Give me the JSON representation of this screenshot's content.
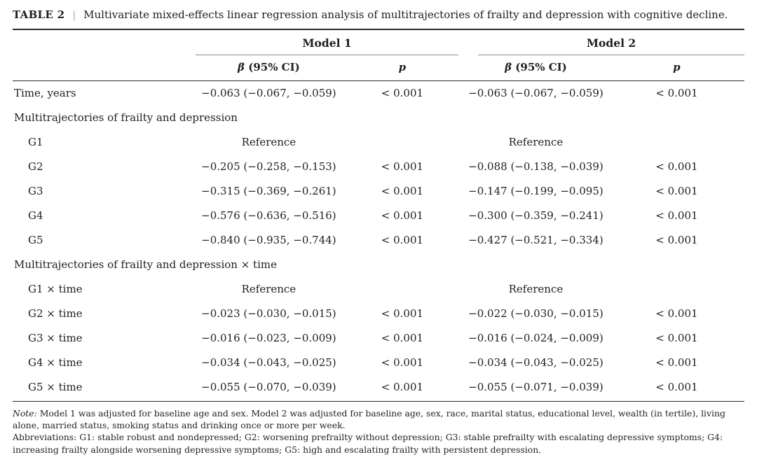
{
  "caption": {
    "label": "TABLE 2",
    "separator": "|",
    "text": "Multivariate mixed-effects linear regression analysis of multitrajectories of frailty and depression with cognitive decline."
  },
  "headers": {
    "model1": "Model 1",
    "model2": "Model 2",
    "beta_symbol": "β",
    "beta_rest": " (95% CI)",
    "p": "p"
  },
  "rows": [
    {
      "type": "data",
      "label": "Time, years",
      "m1_beta": "−0.063 (−0.067, −0.059)",
      "m1_p": "< 0.001",
      "m2_beta": "−0.063 (−0.067, −0.059)",
      "m2_p": "< 0.001"
    },
    {
      "type": "section",
      "label": "Multitrajectories of frailty and depression"
    },
    {
      "type": "reference",
      "label": "G1",
      "m1_beta": "Reference",
      "m1_p": "",
      "m2_beta": "Reference",
      "m2_p": ""
    },
    {
      "type": "data",
      "label": "G2",
      "m1_beta": "−0.205 (−0.258, −0.153)",
      "m1_p": "< 0.001",
      "m2_beta": "−0.088 (−0.138, −0.039)",
      "m2_p": "< 0.001"
    },
    {
      "type": "data",
      "label": "G3",
      "m1_beta": "−0.315 (−0.369, −0.261)",
      "m1_p": "< 0.001",
      "m2_beta": "−0.147 (−0.199, −0.095)",
      "m2_p": "< 0.001"
    },
    {
      "type": "data",
      "label": "G4",
      "m1_beta": "−0.576 (−0.636, −0.516)",
      "m1_p": "< 0.001",
      "m2_beta": "−0.300 (−0.359, −0.241)",
      "m2_p": "< 0.001"
    },
    {
      "type": "data",
      "label": "G5",
      "m1_beta": "−0.840 (−0.935, −0.744)",
      "m1_p": "< 0.001",
      "m2_beta": "−0.427 (−0.521, −0.334)",
      "m2_p": "< 0.001"
    },
    {
      "type": "section",
      "label": "Multitrajectories of frailty and depression × time"
    },
    {
      "type": "reference",
      "label": "G1 × time",
      "m1_beta": "Reference",
      "m1_p": "",
      "m2_beta": "Reference",
      "m2_p": ""
    },
    {
      "type": "data",
      "label": "G2 × time",
      "m1_beta": "−0.023 (−0.030, −0.015)",
      "m1_p": "< 0.001",
      "m2_beta": "−0.022 (−0.030, −0.015)",
      "m2_p": "< 0.001"
    },
    {
      "type": "data",
      "label": "G3 × time",
      "m1_beta": "−0.016 (−0.023, −0.009)",
      "m1_p": "< 0.001",
      "m2_beta": "−0.016 (−0.024, −0.009)",
      "m2_p": "< 0.001"
    },
    {
      "type": "data",
      "label": "G4 × time",
      "m1_beta": "−0.034 (−0.043, −0.025)",
      "m1_p": "< 0.001",
      "m2_beta": "−0.034 (−0.043, −0.025)",
      "m2_p": "< 0.001"
    },
    {
      "type": "data",
      "label": "G5 × time",
      "m1_beta": "−0.055 (−0.070, −0.039)",
      "m1_p": "< 0.001",
      "m2_beta": "−0.055 (−0.071, −0.039)",
      "m2_p": "< 0.001"
    }
  ],
  "footnotes": {
    "note_label": "Note:",
    "note_text": " Model 1 was adjusted for baseline age and sex. Model 2 was adjusted for baseline age, sex, race, marital status, educational level, wealth (in tertile), living alone, married status, smoking status and drinking once or more per week.",
    "abbreviations": "Abbreviations: G1: stable robust and nondepressed; G2: worsening prefrailty without depression; G3: stable prefrailty with escalating depressive symptoms; G4: increasing frailty alongside worsening depressive symptoms; G5: high and escalating frailty with persistent depression."
  }
}
